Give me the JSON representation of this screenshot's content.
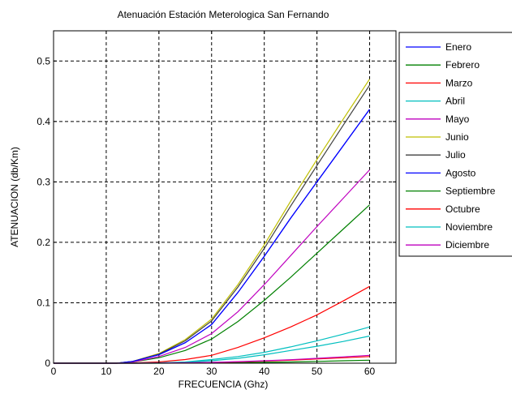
{
  "chart_data": {
    "type": "line",
    "title": "Atenuación Estación Meterologica San Fernando",
    "xlabel": "FRECUENCIA (Ghz)",
    "ylabel": "ATENUACION (db/Km)",
    "xlim": [
      0,
      65
    ],
    "ylim": [
      0,
      0.55
    ],
    "xticks": [
      0,
      10,
      20,
      30,
      40,
      50,
      60
    ],
    "xtick_labels": [
      "0",
      "10",
      "20",
      "30",
      "40",
      "50",
      "60"
    ],
    "yticks": [
      0,
      0.1,
      0.2,
      0.3,
      0.4,
      0.5
    ],
    "ytick_labels": [
      "0",
      "0.1",
      "0.2",
      "0.3",
      "0.4",
      "0.5"
    ],
    "grid": true,
    "legend_position": "right",
    "x": [
      0,
      5,
      10,
      12,
      15,
      20,
      25,
      30,
      35,
      40,
      45,
      50,
      55,
      60
    ],
    "series": [
      {
        "name": "Enero",
        "color": "#0000ff",
        "values": [
          0,
          0,
          0,
          0,
          0.003,
          0.014,
          0.034,
          0.064,
          0.117,
          0.177,
          0.24,
          0.3,
          0.36,
          0.42
        ]
      },
      {
        "name": "Febrero",
        "color": "#008000",
        "values": [
          0,
          0,
          0,
          0,
          0.002,
          0.009,
          0.021,
          0.04,
          0.069,
          0.104,
          0.142,
          0.182,
          0.222,
          0.262
        ]
      },
      {
        "name": "Marzo",
        "color": "#ff0000",
        "values": [
          0,
          0,
          0,
          0,
          0.0005,
          0.002,
          0.006,
          0.013,
          0.026,
          0.042,
          0.06,
          0.08,
          0.103,
          0.127
        ]
      },
      {
        "name": "Abril",
        "color": "#00bfbf",
        "values": [
          0,
          0,
          0,
          0,
          0,
          0.0006,
          0.002,
          0.006,
          0.011,
          0.018,
          0.027,
          0.037,
          0.048,
          0.06
        ]
      },
      {
        "name": "Mayo",
        "color": "#bf00bf",
        "values": [
          0,
          0,
          0,
          0,
          0.002,
          0.011,
          0.026,
          0.049,
          0.085,
          0.13,
          0.178,
          0.226,
          0.273,
          0.32
        ]
      },
      {
        "name": "Junio",
        "color": "#bfbf00",
        "values": [
          0,
          0,
          0,
          0,
          0.003,
          0.016,
          0.039,
          0.073,
          0.13,
          0.196,
          0.268,
          0.337,
          0.404,
          0.47
        ]
      },
      {
        "name": "Julio",
        "color": "#404040",
        "values": [
          0,
          0,
          0,
          0,
          0.003,
          0.015,
          0.037,
          0.07,
          0.126,
          0.19,
          0.26,
          0.327,
          0.394,
          0.46
        ]
      },
      {
        "name": "Agosto",
        "color": "#0000ff",
        "values": [
          0,
          0,
          0,
          0,
          0.003,
          0.014,
          0.034,
          0.064,
          0.117,
          0.177,
          0.24,
          0.3,
          0.36,
          0.42
        ]
      },
      {
        "name": "Septiembre",
        "color": "#008000",
        "values": [
          0,
          0,
          0,
          0,
          0,
          0,
          0.0003,
          0.0006,
          0.001,
          0.0015,
          0.002,
          0.003,
          0.004,
          0.005
        ]
      },
      {
        "name": "Octubre",
        "color": "#ff0000",
        "values": [
          0,
          0,
          0,
          0,
          0,
          0.0002,
          0.0006,
          0.0012,
          0.0022,
          0.0035,
          0.005,
          0.007,
          0.009,
          0.011
        ]
      },
      {
        "name": "Noviembre",
        "color": "#00bfbf",
        "values": [
          0,
          0,
          0,
          0,
          0,
          0.0005,
          0.0015,
          0.004,
          0.008,
          0.014,
          0.021,
          0.028,
          0.036,
          0.045
        ]
      },
      {
        "name": "Diciembre",
        "color": "#bf00bf",
        "values": [
          0,
          0,
          0,
          0,
          0,
          0.0002,
          0.0007,
          0.0014,
          0.0025,
          0.004,
          0.0058,
          0.008,
          0.0105,
          0.013
        ]
      }
    ]
  }
}
